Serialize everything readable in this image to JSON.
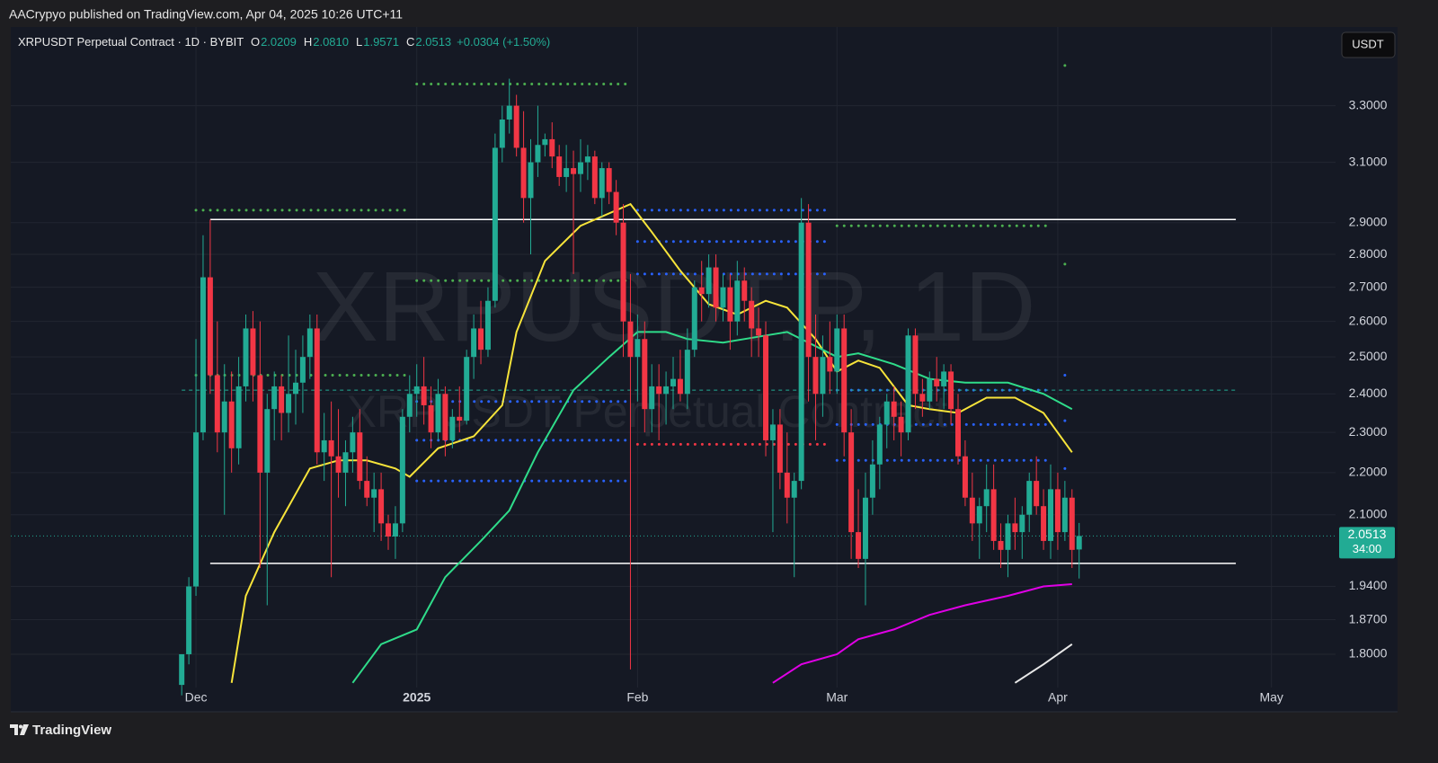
{
  "header": {
    "text": "AACrypyo published on TradingView.com, Apr 04, 2025 10:26 UTC+11",
    "currency": "USDT",
    "brand": "TradingView"
  },
  "chart_data": {
    "type": "candlestick",
    "legend": {
      "title": "XRPUSDT Perpetual Contract · 1D · BYBIT",
      "items": [
        {
          "key": "O",
          "value": "2.0209"
        },
        {
          "key": "H",
          "value": "2.0810"
        },
        {
          "key": "L",
          "value": "1.9571"
        },
        {
          "key": "C",
          "value": "2.0513"
        }
      ],
      "change": "+0.0304 (+1.50%)"
    },
    "watermark": {
      "symbol": "XRPUSDT.P, 1D",
      "description": "XRPUSDT Perpetual Contract"
    },
    "price_tag": {
      "price": "2.0513",
      "countdown": "34:00"
    },
    "log_scale": true,
    "grid": true,
    "up_color": "#22ab94",
    "down_color": "#f23645",
    "xlim": [
      -24,
      162
    ],
    "ylim": [
      1.735,
      3.6
    ],
    "xticks": [
      {
        "value": 2,
        "label": "Dec"
      },
      {
        "value": 33,
        "label": "2025"
      },
      {
        "value": 64,
        "label": "Feb"
      },
      {
        "value": 92,
        "label": "Mar"
      },
      {
        "value": 123,
        "label": "Apr"
      },
      {
        "value": 153,
        "label": "May"
      }
    ],
    "yticks": [
      {
        "value": 3.3,
        "label": "3.3000"
      },
      {
        "value": 3.1,
        "label": "3.1000"
      },
      {
        "value": 2.9,
        "label": "2.9000"
      },
      {
        "value": 2.8,
        "label": "2.8000"
      },
      {
        "value": 2.7,
        "label": "2.7000"
      },
      {
        "value": 2.6,
        "label": "2.6000"
      },
      {
        "value": 2.5,
        "label": "2.5000"
      },
      {
        "value": 2.4,
        "label": "2.4000"
      },
      {
        "value": 2.3,
        "label": "2.3000"
      },
      {
        "value": 2.2,
        "label": "2.2000"
      },
      {
        "value": 2.1,
        "label": "2.1000"
      },
      {
        "value": 1.94,
        "label": "1.9400"
      },
      {
        "value": 1.87,
        "label": "1.8700"
      },
      {
        "value": 1.8,
        "label": "1.8000"
      }
    ],
    "x": [
      0,
      1,
      2,
      3,
      4,
      5,
      6,
      7,
      8,
      9,
      10,
      11,
      12,
      13,
      14,
      15,
      16,
      17,
      18,
      19,
      20,
      21,
      22,
      23,
      24,
      25,
      26,
      27,
      28,
      29,
      30,
      31,
      32,
      33,
      34,
      35,
      36,
      37,
      38,
      39,
      40,
      41,
      42,
      43,
      44,
      45,
      46,
      47,
      48,
      49,
      50,
      51,
      52,
      53,
      54,
      55,
      56,
      57,
      58,
      59,
      60,
      61,
      62,
      63,
      64,
      65,
      66,
      67,
      68,
      69,
      70,
      71,
      72,
      73,
      74,
      75,
      76,
      77,
      78,
      79,
      80,
      81,
      82,
      83,
      84,
      85,
      86,
      87,
      88,
      89,
      90,
      91,
      92,
      93,
      94,
      95,
      96,
      97,
      98,
      99,
      100,
      101,
      102,
      103,
      104,
      105,
      106,
      107,
      108,
      109,
      110,
      111,
      112,
      113,
      114,
      115,
      116,
      117,
      118,
      119,
      120,
      121,
      122,
      123,
      124,
      125,
      126
    ],
    "open": [
      1.74,
      1.8,
      1.94,
      2.3,
      2.73,
      2.45,
      2.3,
      2.38,
      2.26,
      2.42,
      2.58,
      2.45,
      2.2,
      2.36,
      2.42,
      2.35,
      2.4,
      2.43,
      2.5,
      2.58,
      2.25,
      2.28,
      2.24,
      2.2,
      2.25,
      2.3,
      2.18,
      2.14,
      2.16,
      2.08,
      2.05,
      2.08,
      2.34,
      2.4,
      2.42,
      2.37,
      2.3,
      2.4,
      2.28,
      2.34,
      2.33,
      2.5,
      2.58,
      2.52,
      2.66,
      3.15,
      3.25,
      3.3,
      3.15,
      2.98,
      3.1,
      3.16,
      3.18,
      3.12,
      3.05,
      3.08,
      3.06,
      3.1,
      3.12,
      2.98,
      3.08,
      3.0,
      2.9,
      2.6,
      2.5,
      2.55,
      2.36,
      2.42,
      2.4,
      2.42,
      2.44,
      2.4,
      2.52,
      2.7,
      2.68,
      2.76,
      2.64,
      2.7,
      2.6,
      2.72,
      2.66,
      2.58,
      2.56,
      2.28,
      2.32,
      2.2,
      2.14,
      2.18,
      2.9,
      2.5,
      2.4,
      2.5,
      2.46,
      2.58,
      2.3,
      2.06,
      2.0,
      2.14,
      2.22,
      2.32,
      2.38,
      2.34,
      2.3,
      2.56,
      2.4,
      2.38,
      2.44,
      2.42,
      2.46,
      2.36,
      2.24,
      2.14,
      2.08,
      2.12,
      2.16,
      2.04,
      2.02,
      2.08,
      2.06,
      2.1,
      2.18,
      2.12,
      2.04,
      2.16,
      2.06,
      2.14,
      2.0209
    ],
    "high": [
      1.8,
      1.96,
      2.55,
      2.86,
      2.91,
      2.6,
      2.48,
      2.46,
      2.5,
      2.62,
      2.63,
      2.6,
      2.4,
      2.46,
      2.45,
      2.56,
      2.52,
      2.56,
      2.62,
      2.62,
      2.35,
      2.38,
      2.36,
      2.28,
      2.34,
      2.36,
      2.24,
      2.2,
      2.2,
      2.1,
      2.12,
      2.36,
      2.45,
      2.48,
      2.5,
      2.42,
      2.44,
      2.42,
      2.36,
      2.42,
      2.52,
      2.62,
      2.66,
      2.7,
      3.2,
      3.3,
      3.4,
      3.34,
      3.28,
      3.18,
      3.3,
      3.2,
      3.24,
      3.16,
      3.16,
      3.14,
      3.18,
      3.16,
      3.14,
      3.1,
      3.1,
      3.04,
      2.96,
      2.74,
      2.62,
      2.6,
      2.48,
      2.48,
      2.46,
      2.5,
      2.52,
      2.58,
      2.72,
      2.78,
      2.8,
      2.8,
      2.74,
      2.74,
      2.78,
      2.76,
      2.7,
      2.64,
      2.6,
      2.36,
      2.36,
      2.3,
      2.2,
      2.98,
      2.96,
      2.62,
      2.56,
      2.6,
      2.62,
      2.62,
      2.36,
      2.16,
      2.2,
      2.28,
      2.34,
      2.4,
      2.42,
      2.38,
      2.58,
      2.58,
      2.44,
      2.46,
      2.5,
      2.48,
      2.48,
      2.4,
      2.28,
      2.2,
      2.14,
      2.22,
      2.22,
      2.08,
      2.1,
      2.14,
      2.12,
      2.2,
      2.24,
      2.16,
      2.22,
      2.2,
      2.18,
      2.16,
      2.081
    ],
    "low": [
      1.72,
      1.78,
      1.92,
      2.28,
      2.4,
      2.25,
      2.1,
      2.2,
      2.22,
      2.38,
      2.38,
      1.98,
      1.9,
      2.28,
      2.28,
      2.3,
      2.32,
      2.35,
      2.44,
      2.22,
      2.18,
      1.96,
      2.14,
      2.12,
      2.2,
      2.16,
      2.12,
      2.06,
      2.04,
      2.02,
      2.0,
      2.06,
      2.3,
      2.34,
      2.32,
      2.26,
      2.28,
      2.24,
      2.26,
      2.3,
      2.32,
      2.44,
      2.48,
      2.5,
      2.64,
      3.1,
      3.2,
      3.12,
      2.9,
      2.8,
      3.05,
      3.12,
      3.08,
      3.02,
      3.0,
      2.74,
      3.0,
      3.04,
      2.96,
      2.92,
      2.96,
      2.86,
      2.5,
      1.77,
      2.38,
      2.3,
      2.3,
      2.28,
      2.32,
      2.36,
      2.38,
      2.36,
      2.5,
      2.6,
      2.64,
      2.6,
      2.6,
      2.52,
      2.56,
      2.6,
      2.5,
      2.5,
      2.24,
      2.06,
      2.16,
      2.08,
      1.96,
      2.16,
      2.38,
      2.28,
      2.34,
      2.4,
      2.4,
      2.24,
      2.0,
      1.98,
      1.9,
      2.1,
      2.16,
      2.26,
      2.28,
      2.24,
      2.28,
      2.36,
      2.34,
      2.36,
      2.38,
      2.36,
      2.32,
      2.22,
      2.12,
      2.04,
      2.0,
      2.06,
      2.02,
      1.98,
      1.96,
      2.02,
      2.0,
      2.06,
      2.1,
      2.02,
      2.0,
      2.02,
      2.04,
      1.98,
      1.9571
    ],
    "close": [
      1.8,
      1.94,
      2.3,
      2.73,
      2.45,
      2.3,
      2.38,
      2.26,
      2.42,
      2.58,
      2.45,
      2.2,
      2.36,
      2.42,
      2.35,
      2.4,
      2.43,
      2.5,
      2.58,
      2.25,
      2.28,
      2.24,
      2.2,
      2.25,
      2.3,
      2.18,
      2.14,
      2.16,
      2.08,
      2.05,
      2.08,
      2.34,
      2.4,
      2.42,
      2.37,
      2.3,
      2.4,
      2.28,
      2.34,
      2.33,
      2.5,
      2.58,
      2.52,
      2.66,
      3.15,
      3.25,
      3.3,
      3.15,
      2.98,
      3.1,
      3.16,
      3.18,
      3.12,
      3.05,
      3.08,
      3.06,
      3.1,
      3.12,
      2.98,
      3.08,
      3.0,
      2.9,
      2.6,
      2.5,
      2.55,
      2.36,
      2.42,
      2.4,
      2.42,
      2.44,
      2.4,
      2.52,
      2.7,
      2.68,
      2.76,
      2.64,
      2.7,
      2.6,
      2.72,
      2.66,
      2.58,
      2.56,
      2.28,
      2.32,
      2.2,
      2.14,
      2.18,
      2.9,
      2.5,
      2.4,
      2.5,
      2.46,
      2.58,
      2.3,
      2.06,
      2.0,
      2.14,
      2.22,
      2.32,
      2.38,
      2.34,
      2.3,
      2.56,
      2.4,
      2.38,
      2.44,
      2.42,
      2.46,
      2.36,
      2.24,
      2.14,
      2.08,
      2.12,
      2.16,
      2.04,
      2.02,
      2.08,
      2.06,
      2.1,
      2.18,
      2.12,
      2.04,
      2.16,
      2.06,
      2.14,
      2.02,
      2.0513
    ],
    "lines": [
      {
        "color": "#f7e43a",
        "x": [
          7,
          9,
          13,
          18,
          22,
          26,
          30,
          32,
          36,
          41,
          45,
          47,
          51,
          56,
          63,
          66,
          70,
          74,
          78,
          82,
          85,
          89,
          92,
          95,
          98,
          102,
          105,
          109,
          113,
          117,
          121,
          125
        ],
        "values": [
          1.744,
          1.92,
          2.06,
          2.21,
          2.23,
          2.23,
          2.21,
          2.19,
          2.26,
          2.29,
          2.37,
          2.57,
          2.78,
          2.89,
          2.96,
          2.87,
          2.75,
          2.65,
          2.62,
          2.66,
          2.64,
          2.55,
          2.46,
          2.49,
          2.47,
          2.37,
          2.36,
          2.35,
          2.39,
          2.39,
          2.35,
          2.25
        ]
      },
      {
        "color": "#2fdc8a",
        "x": [
          24,
          28,
          33,
          37,
          42,
          46,
          50,
          55,
          60,
          64,
          68,
          71,
          76,
          82,
          85,
          89,
          92,
          95,
          100,
          105,
          110,
          116,
          121,
          125
        ],
        "values": [
          1.744,
          1.82,
          1.85,
          1.96,
          2.04,
          2.11,
          2.25,
          2.41,
          2.5,
          2.57,
          2.57,
          2.55,
          2.54,
          2.56,
          2.57,
          2.53,
          2.5,
          2.51,
          2.48,
          2.44,
          2.43,
          2.43,
          2.4,
          2.36
        ]
      },
      {
        "color": "#e000e6",
        "x": [
          83,
          87,
          92,
          95,
          100,
          105,
          110,
          116,
          121,
          125
        ],
        "values": [
          1.744,
          1.78,
          1.8,
          1.83,
          1.85,
          1.88,
          1.9,
          1.92,
          1.94,
          1.945
        ]
      },
      {
        "color": "#e8e8e8",
        "x": [
          117,
          121,
          125
        ],
        "values": [
          1.744,
          1.78,
          1.82
        ]
      }
    ],
    "levels": [
      {
        "price": 2.94,
        "from": 2,
        "to": 32,
        "color": "#4caf50",
        "style": "dotted"
      },
      {
        "price": 2.45,
        "from": 2,
        "to": 32,
        "color": "#4caf50",
        "style": "dotted"
      },
      {
        "price": 3.38,
        "from": 33,
        "to": 63,
        "color": "#4caf50",
        "style": "dotted"
      },
      {
        "price": 2.72,
        "from": 33,
        "to": 63,
        "color": "#4caf50",
        "style": "dotted"
      },
      {
        "price": 2.89,
        "from": 92,
        "to": 122,
        "color": "#4caf50",
        "style": "dotted"
      },
      {
        "price": 3.45,
        "from": 124,
        "to": 125,
        "color": "#4caf50",
        "style": "dotted"
      },
      {
        "price": 2.77,
        "from": 124,
        "to": 125,
        "color": "#4caf50",
        "style": "dotted"
      },
      {
        "price": 2.94,
        "from": 64,
        "to": 91,
        "color": "#2962ff",
        "style": "dotted"
      },
      {
        "price": 2.84,
        "from": 64,
        "to": 91,
        "color": "#2962ff",
        "style": "dotted"
      },
      {
        "price": 2.74,
        "from": 64,
        "to": 91,
        "color": "#2962ff",
        "style": "dotted"
      },
      {
        "price": 2.38,
        "from": 33,
        "to": 63,
        "color": "#2962ff",
        "style": "dotted"
      },
      {
        "price": 2.28,
        "from": 33,
        "to": 63,
        "color": "#2962ff",
        "style": "dotted"
      },
      {
        "price": 2.18,
        "from": 33,
        "to": 63,
        "color": "#2962ff",
        "style": "dotted"
      },
      {
        "price": 2.41,
        "from": 92,
        "to": 122,
        "color": "#2962ff",
        "style": "dotted"
      },
      {
        "price": 2.32,
        "from": 92,
        "to": 122,
        "color": "#2962ff",
        "style": "dotted"
      },
      {
        "price": 2.23,
        "from": 92,
        "to": 122,
        "color": "#2962ff",
        "style": "dotted"
      },
      {
        "price": 2.45,
        "from": 124,
        "to": 125,
        "color": "#2962ff",
        "style": "dotted"
      },
      {
        "price": 2.33,
        "from": 124,
        "to": 125,
        "color": "#2962ff",
        "style": "dotted"
      },
      {
        "price": 2.21,
        "from": 124,
        "to": 125,
        "color": "#2962ff",
        "style": "dotted"
      },
      {
        "price": 2.27,
        "from": 64,
        "to": 91,
        "color": "#f23645",
        "style": "dotted"
      },
      {
        "price": 2.41,
        "from": 0,
        "to": 148,
        "color": "#22ab94",
        "style": "dashed"
      },
      {
        "price": 2.91,
        "from": 4,
        "to": 148,
        "color": "#ffffff",
        "style": "solid"
      },
      {
        "price": 1.99,
        "from": 4,
        "to": 148,
        "color": "#ffffff",
        "style": "solid"
      }
    ]
  }
}
